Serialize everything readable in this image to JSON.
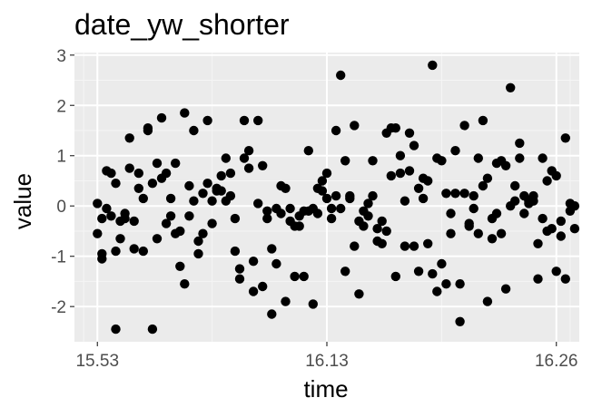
{
  "chart_data": {
    "type": "scatter",
    "title": "date_yw_shorter",
    "xlabel": "time",
    "ylabel": "value",
    "x_axis": {
      "ticks": [
        "15.53",
        "16.13",
        "16.26"
      ],
      "tick_positions_index": [
        0,
        0.5,
        1.0
      ]
    },
    "y_axis": {
      "ticks": [
        3,
        2,
        1,
        0,
        -1,
        -2
      ],
      "tick_labels": [
        "3",
        "2",
        "1",
        "0",
        "-1",
        "-2"
      ],
      "ylim": [
        -2.7,
        3.05
      ]
    },
    "grid": true,
    "panel_background": "#ebebeb",
    "point_color": "#000000",
    "x_range_index": [
      -0.05,
      1.05
    ],
    "points": [
      [
        0.0,
        0.05
      ],
      [
        0.0,
        -0.55
      ],
      [
        0.01,
        -0.95
      ],
      [
        0.01,
        -1.05
      ],
      [
        0.01,
        -0.25
      ],
      [
        0.02,
        -0.05
      ],
      [
        0.02,
        0.7
      ],
      [
        0.03,
        -0.2
      ],
      [
        0.03,
        0.65
      ],
      [
        0.04,
        -2.45
      ],
      [
        0.04,
        -0.9
      ],
      [
        0.04,
        0.45
      ],
      [
        0.05,
        -0.3
      ],
      [
        0.05,
        -0.65
      ],
      [
        0.06,
        -0.15
      ],
      [
        0.06,
        -0.25
      ],
      [
        0.07,
        0.75
      ],
      [
        0.07,
        1.35
      ],
      [
        0.08,
        -0.85
      ],
      [
        0.08,
        -0.3
      ],
      [
        0.09,
        0.35
      ],
      [
        0.09,
        0.65
      ],
      [
        0.1,
        -0.9
      ],
      [
        0.1,
        0.15
      ],
      [
        0.11,
        1.5
      ],
      [
        0.11,
        1.55
      ],
      [
        0.12,
        -2.45
      ],
      [
        0.12,
        0.45
      ],
      [
        0.13,
        0.85
      ],
      [
        0.13,
        -0.65
      ],
      [
        0.14,
        1.75
      ],
      [
        0.14,
        0.55
      ],
      [
        0.15,
        -0.35
      ],
      [
        0.15,
        0.65
      ],
      [
        0.16,
        0.15
      ],
      [
        0.16,
        -0.2
      ],
      [
        0.17,
        -0.55
      ],
      [
        0.17,
        0.85
      ],
      [
        0.18,
        -0.5
      ],
      [
        0.18,
        -1.2
      ],
      [
        0.19,
        -1.55
      ],
      [
        0.19,
        1.85
      ],
      [
        0.2,
        -0.2
      ],
      [
        0.2,
        0.4
      ],
      [
        0.21,
        1.5
      ],
      [
        0.21,
        0.1
      ],
      [
        0.22,
        -0.7
      ],
      [
        0.22,
        -0.95
      ],
      [
        0.23,
        -0.55
      ],
      [
        0.23,
        0.25
      ],
      [
        0.24,
        0.45
      ],
      [
        0.24,
        1.7
      ],
      [
        0.25,
        0.1
      ],
      [
        0.25,
        -0.35
      ],
      [
        0.26,
        0.35
      ],
      [
        0.26,
        0.3
      ],
      [
        0.27,
        0.6
      ],
      [
        0.27,
        0.3
      ],
      [
        0.28,
        0.95
      ],
      [
        0.28,
        0.1
      ],
      [
        0.29,
        0.2
      ],
      [
        0.29,
        0.65
      ],
      [
        0.3,
        -0.25
      ],
      [
        0.3,
        -0.9
      ],
      [
        0.31,
        -1.25
      ],
      [
        0.31,
        -1.45
      ],
      [
        0.32,
        1.7
      ],
      [
        0.32,
        0.95
      ],
      [
        0.33,
        0.75
      ],
      [
        0.33,
        1.1
      ],
      [
        0.34,
        -1.7
      ],
      [
        0.34,
        -1.1
      ],
      [
        0.35,
        0.05
      ],
      [
        0.35,
        1.7
      ],
      [
        0.36,
        -1.6
      ],
      [
        0.36,
        0.8
      ],
      [
        0.37,
        -0.1
      ],
      [
        0.37,
        -0.25
      ],
      [
        0.38,
        -2.15
      ],
      [
        0.38,
        -0.85
      ],
      [
        0.39,
        -1.15
      ],
      [
        0.39,
        -0.05
      ],
      [
        0.4,
        0.4
      ],
      [
        0.4,
        -0.15
      ],
      [
        0.41,
        -1.9
      ],
      [
        0.41,
        0.35
      ],
      [
        0.42,
        -0.3
      ],
      [
        0.42,
        -0.05
      ],
      [
        0.43,
        -1.4
      ],
      [
        0.43,
        -0.4
      ],
      [
        0.44,
        -0.2
      ],
      [
        0.44,
        -0.4
      ],
      [
        0.45,
        -1.4
      ],
      [
        0.45,
        -0.1
      ],
      [
        0.46,
        1.1
      ],
      [
        0.46,
        -0.1
      ],
      [
        0.47,
        -0.05
      ],
      [
        0.47,
        -1.95
      ],
      [
        0.48,
        -0.15
      ],
      [
        0.48,
        0.35
      ],
      [
        0.49,
        0.3
      ],
      [
        0.49,
        0.5
      ],
      [
        0.5,
        0.15
      ],
      [
        0.5,
        0.65
      ],
      [
        0.51,
        -0.25
      ],
      [
        0.51,
        -0.05
      ],
      [
        0.52,
        1.5
      ],
      [
        0.52,
        0.2
      ],
      [
        0.53,
        -0.05
      ],
      [
        0.53,
        2.6
      ],
      [
        0.54,
        -1.3
      ],
      [
        0.54,
        0.9
      ],
      [
        0.55,
        0.2
      ],
      [
        0.55,
        0.15
      ],
      [
        0.56,
        -0.8
      ],
      [
        0.56,
        1.6
      ],
      [
        0.57,
        -0.3
      ],
      [
        0.57,
        -1.75
      ],
      [
        0.58,
        -0.1
      ],
      [
        0.58,
        -0.4
      ],
      [
        0.59,
        0.05
      ],
      [
        0.59,
        -0.2
      ],
      [
        0.6,
        0.2
      ],
      [
        0.6,
        0.9
      ],
      [
        0.61,
        -0.7
      ],
      [
        0.61,
        -0.45
      ],
      [
        0.62,
        -0.3
      ],
      [
        0.62,
        -0.75
      ],
      [
        0.63,
        -0.5
      ],
      [
        0.63,
        1.45
      ],
      [
        0.64,
        0.6
      ],
      [
        0.64,
        1.55
      ],
      [
        0.65,
        -1.4
      ],
      [
        0.65,
        1.55
      ],
      [
        0.66,
        0.65
      ],
      [
        0.66,
        1.0
      ],
      [
        0.67,
        -0.8
      ],
      [
        0.67,
        0.1
      ],
      [
        0.68,
        1.45
      ],
      [
        0.68,
        0.7
      ],
      [
        0.69,
        1.2
      ],
      [
        0.69,
        -0.8
      ],
      [
        0.7,
        0.35
      ],
      [
        0.7,
        -1.3
      ],
      [
        0.71,
        0.55
      ],
      [
        0.71,
        0.15
      ],
      [
        0.72,
        -0.75
      ],
      [
        0.72,
        0.5
      ],
      [
        0.73,
        2.8
      ],
      [
        0.73,
        -1.35
      ],
      [
        0.74,
        -1.7
      ],
      [
        0.74,
        0.95
      ],
      [
        0.75,
        -1.15
      ],
      [
        0.75,
        0.9
      ],
      [
        0.76,
        -1.55
      ],
      [
        0.76,
        0.25
      ],
      [
        0.77,
        -0.55
      ],
      [
        0.77,
        -0.15
      ],
      [
        0.78,
        0.25
      ],
      [
        0.78,
        1.1
      ],
      [
        0.79,
        -1.55
      ],
      [
        0.79,
        -2.3
      ],
      [
        0.8,
        1.6
      ],
      [
        0.8,
        0.25
      ],
      [
        0.81,
        -0.4
      ],
      [
        0.81,
        -0.35
      ],
      [
        0.82,
        -0.05
      ],
      [
        0.82,
        0.2
      ],
      [
        0.83,
        0.95
      ],
      [
        0.83,
        -0.55
      ],
      [
        0.84,
        0.4
      ],
      [
        0.84,
        1.7
      ],
      [
        0.85,
        0.55
      ],
      [
        0.85,
        -1.9
      ],
      [
        0.86,
        -0.65
      ],
      [
        0.86,
        -0.25
      ],
      [
        0.87,
        -0.15
      ],
      [
        0.87,
        0.85
      ],
      [
        0.88,
        0.9
      ],
      [
        0.88,
        -0.55
      ],
      [
        0.89,
        -1.65
      ],
      [
        0.89,
        0.8
      ],
      [
        0.9,
        2.35
      ],
      [
        0.9,
        0.0
      ],
      [
        0.91,
        0.4
      ],
      [
        0.91,
        0.1
      ],
      [
        0.92,
        1.25
      ],
      [
        0.92,
        0.95
      ],
      [
        0.93,
        0.2
      ],
      [
        0.93,
        -0.15
      ],
      [
        0.94,
        0.1
      ],
      [
        0.94,
        0.05
      ],
      [
        0.95,
        0.2
      ],
      [
        0.95,
        0.1
      ],
      [
        0.96,
        -0.75
      ],
      [
        0.96,
        -1.45
      ],
      [
        0.97,
        0.95
      ],
      [
        0.97,
        -0.25
      ],
      [
        0.98,
        0.5
      ],
      [
        0.98,
        -0.5
      ],
      [
        0.99,
        0.7
      ],
      [
        0.99,
        -0.45
      ],
      [
        1.0,
        0.6
      ],
      [
        1.0,
        -1.3
      ],
      [
        1.01,
        -0.3
      ],
      [
        1.01,
        -0.6
      ],
      [
        1.02,
        1.35
      ],
      [
        1.02,
        -1.45
      ],
      [
        1.03,
        -0.1
      ],
      [
        1.03,
        0.05
      ],
      [
        1.04,
        -0.45
      ],
      [
        1.04,
        0.0
      ]
    ]
  }
}
